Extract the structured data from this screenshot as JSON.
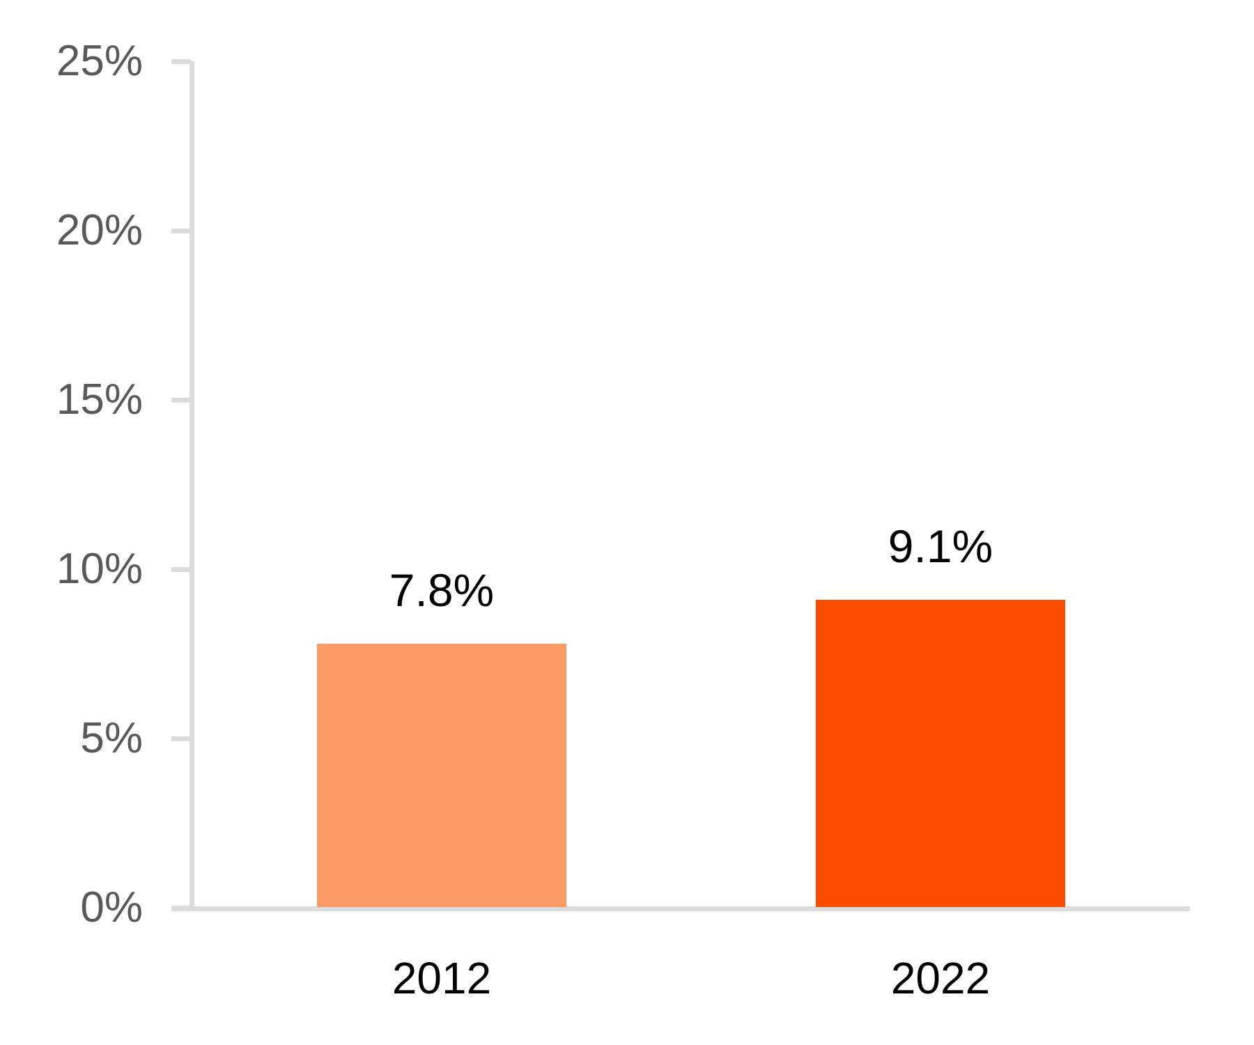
{
  "chart_data": {
    "type": "bar",
    "categories": [
      "2012",
      "2022"
    ],
    "values": [
      7.8,
      9.1
    ],
    "value_labels": [
      "7.8%",
      "9.1%"
    ],
    "series_colors": [
      "#FA9A66",
      "#FB4D00"
    ],
    "title": "",
    "xlabel": "",
    "ylabel": "",
    "ylim": [
      0,
      25
    ],
    "yticks": [
      0,
      5,
      10,
      15,
      20,
      25
    ],
    "ytick_labels": [
      "0%",
      "5%",
      "10%",
      "15%",
      "20%",
      "25%"
    ],
    "grid": false,
    "legend": null,
    "axis_color": "#dcdcdc",
    "ytick_label_color": "#58595b",
    "value_label_color": "#000000",
    "xtick_label_color": "#000000",
    "background_color": "#ffffff"
  }
}
